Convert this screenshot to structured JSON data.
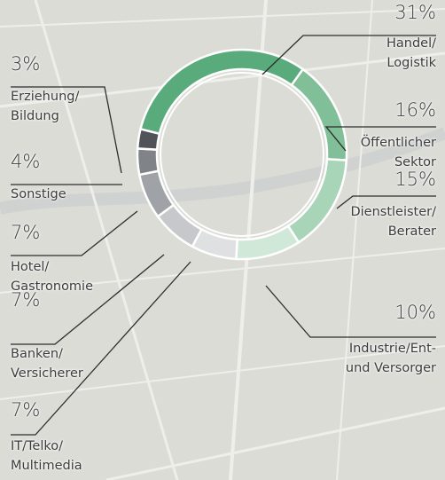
{
  "chart_data": {
    "type": "pie",
    "donut": true,
    "categories": [
      "Handel/\nLogistik",
      "Öffentlicher\nSektor",
      "Dienstleister/\nBerater",
      "Industrie/Ent-\nund Versorger",
      "IT/Telko/\nMultimedia",
      "Banken/\nVersicherer",
      "Hotel/\nGastronomie",
      "Sonstige",
      "Erziehung/\nBildung"
    ],
    "values": [
      31,
      16,
      15,
      10,
      7,
      7,
      7,
      4,
      3
    ],
    "value_labels": [
      "31%",
      "16%",
      "15%",
      "10%",
      "7%",
      "7%",
      "7%",
      "4%",
      "3%"
    ],
    "colors": [
      "#5aab7c",
      "#80bf97",
      "#a8d4b8",
      "#cfe8d8",
      "#dfe0e2",
      "#c6c8cb",
      "#9fa2a6",
      "#808387",
      "#505357"
    ]
  }
}
